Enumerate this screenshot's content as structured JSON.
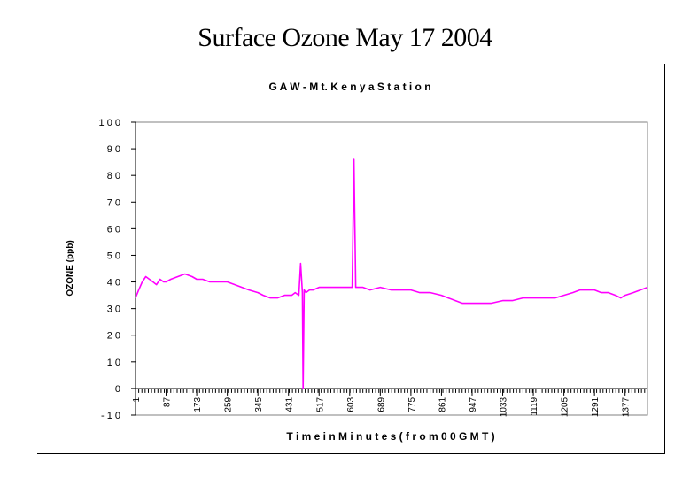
{
  "page": {
    "title": "Surface Ozone May 17 2004"
  },
  "chart_data": {
    "type": "line",
    "title": "G A W - M t. K e n y a   S t a t i o n",
    "xlabel": "T i m e   i n   M i n u t e s   ( f r o m   0 0  G M T )",
    "ylabel": "OZONE (ppb)",
    "xlim": [
      1,
      1440
    ],
    "ylim": [
      -10,
      100
    ],
    "y_ticks": [
      100,
      90,
      80,
      70,
      60,
      50,
      40,
      30,
      20,
      10,
      0,
      -10
    ],
    "y_tick_labels": [
      "1 0 0",
      "9 0",
      "8 0",
      "7 0",
      "6 0",
      "5 0",
      "4 0",
      "3 0",
      "2 0",
      "1 0",
      "0",
      "- 1 0"
    ],
    "x_ticks": [
      1,
      87,
      173,
      259,
      345,
      431,
      517,
      603,
      689,
      775,
      861,
      947,
      1033,
      1119,
      1205,
      1291,
      1377
    ],
    "x_tick_labels": [
      "1",
      "87",
      "173",
      "259",
      "345",
      "431",
      "517",
      "603",
      "689",
      "775",
      "861",
      "947",
      "1033",
      "1119",
      "1205",
      "1291",
      "1377"
    ],
    "grid": false,
    "series": [
      {
        "color": "#ff00ff",
        "x": [
          1,
          10,
          20,
          30,
          40,
          50,
          60,
          70,
          80,
          87,
          100,
          120,
          140,
          160,
          173,
          190,
          210,
          230,
          250,
          259,
          280,
          300,
          320,
          345,
          360,
          380,
          400,
          420,
          431,
          440,
          450,
          460,
          465,
          470,
          472,
          475,
          480,
          490,
          500,
          517,
          540,
          560,
          580,
          603,
          610,
          615,
          620,
          625,
          640,
          660,
          689,
          720,
          750,
          775,
          800,
          830,
          861,
          880,
          900,
          920,
          947,
          970,
          1000,
          1033,
          1060,
          1090,
          1119,
          1150,
          1180,
          1205,
          1230,
          1250,
          1270,
          1291,
          1310,
          1330,
          1350,
          1365,
          1377,
          1400,
          1420,
          1440
        ],
        "y": [
          34,
          37,
          40,
          42,
          41,
          40,
          39,
          41,
          40,
          40,
          41,
          42,
          43,
          42,
          41,
          41,
          40,
          40,
          40,
          40,
          39,
          38,
          37,
          36,
          35,
          34,
          34,
          35,
          35,
          35,
          36,
          35,
          47,
          36,
          0,
          37,
          36,
          37,
          37,
          38,
          38,
          38,
          38,
          38,
          38,
          86,
          38,
          38,
          38,
          37,
          38,
          37,
          37,
          37,
          36,
          36,
          35,
          34,
          33,
          32,
          32,
          32,
          32,
          33,
          33,
          34,
          34,
          34,
          34,
          35,
          36,
          37,
          37,
          37,
          36,
          36,
          35,
          34,
          35,
          36,
          37,
          38
        ]
      }
    ]
  }
}
